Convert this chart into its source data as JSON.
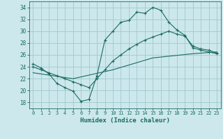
{
  "xlabel": "Humidex (Indice chaleur)",
  "bg_color": "#cce8ec",
  "grid_color": "#a0c8cc",
  "line_color": "#1a6b60",
  "xlim": [
    -0.5,
    23.5
  ],
  "ylim": [
    17,
    35
  ],
  "yticks": [
    18,
    20,
    22,
    24,
    26,
    28,
    30,
    32,
    34
  ],
  "xticks": [
    0,
    1,
    2,
    3,
    4,
    5,
    6,
    7,
    8,
    9,
    10,
    11,
    12,
    13,
    14,
    15,
    16,
    17,
    18,
    19,
    20,
    21,
    22,
    23
  ],
  "line1_x": [
    0,
    1,
    2,
    3,
    4,
    5,
    6,
    7,
    8,
    9,
    10,
    11,
    12,
    13,
    14,
    15,
    16,
    17,
    18,
    19,
    20,
    21,
    22,
    23
  ],
  "line1_y": [
    24.5,
    23.8,
    22.8,
    21.2,
    20.5,
    19.9,
    18.2,
    18.5,
    22.5,
    28.5,
    30.0,
    31.5,
    31.8,
    33.2,
    33.0,
    34.0,
    33.5,
    31.5,
    30.2,
    29.3,
    27.2,
    26.8,
    26.5,
    26.2
  ],
  "line2_x": [
    0,
    1,
    2,
    3,
    4,
    5,
    6,
    7,
    8,
    9,
    10,
    11,
    12,
    13,
    14,
    15,
    16,
    17,
    18,
    19,
    20,
    21,
    22,
    23
  ],
  "line2_y": [
    24.0,
    23.5,
    23.0,
    22.5,
    22.0,
    21.5,
    21.0,
    20.5,
    22.0,
    23.5,
    25.0,
    26.0,
    27.0,
    27.8,
    28.5,
    29.0,
    29.5,
    30.0,
    29.5,
    29.2,
    27.5,
    27.0,
    26.8,
    26.3
  ],
  "line3_x": [
    0,
    5,
    10,
    15,
    20,
    23
  ],
  "line3_y": [
    23.0,
    22.0,
    23.5,
    25.5,
    26.2,
    26.5
  ]
}
